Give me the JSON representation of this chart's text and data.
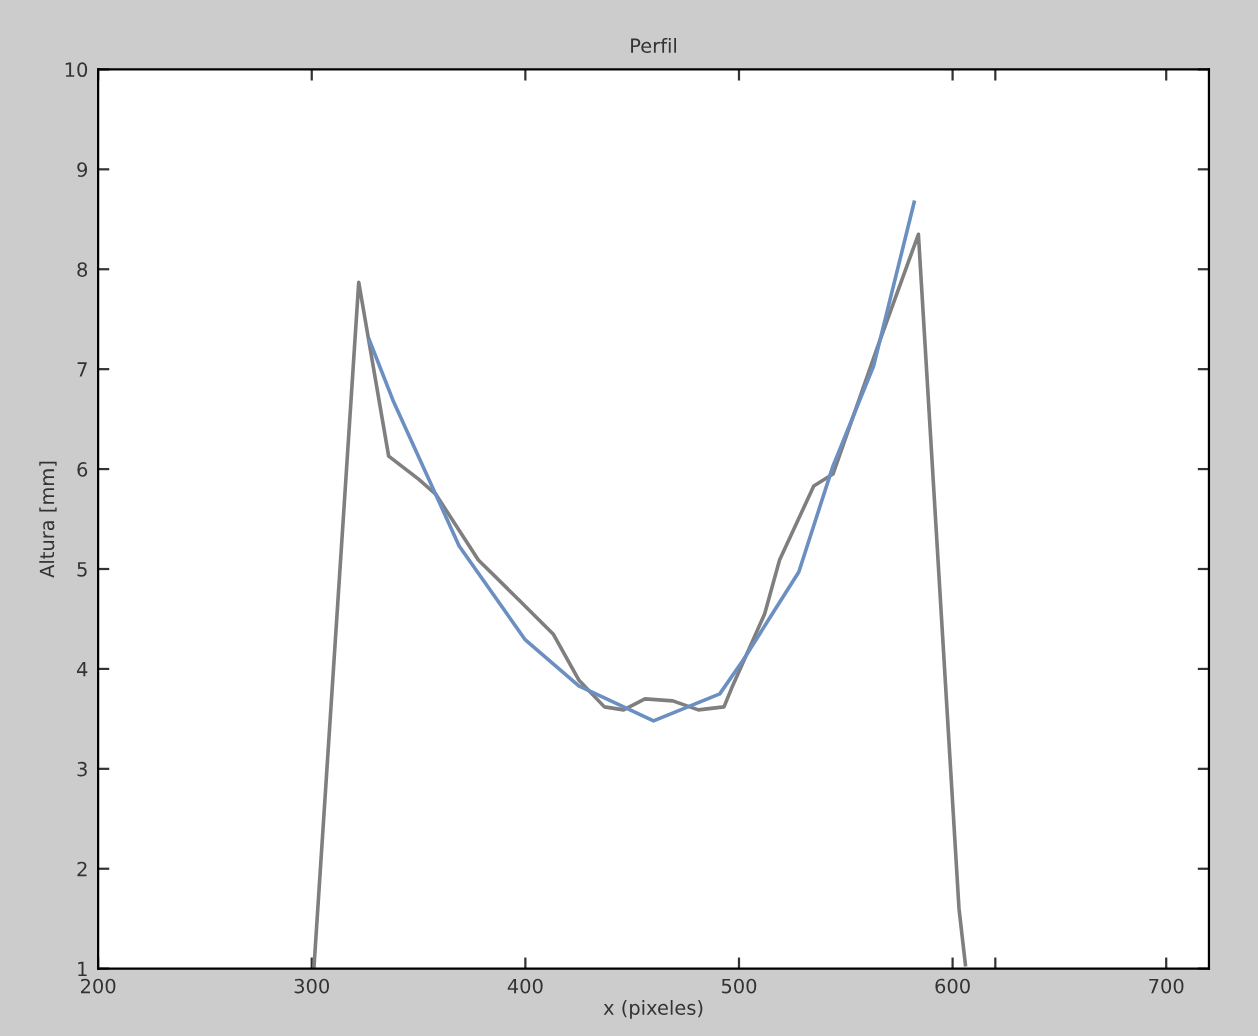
{
  "chart_data": {
    "type": "line",
    "title": "Perfil",
    "xlabel": "x (pixeles)",
    "ylabel": "Altura [mm]",
    "xlim": [
      200,
      720
    ],
    "ylim": [
      1,
      10
    ],
    "xticks": [
      200,
      300,
      400,
      500,
      600,
      {
        "value": 620,
        "label": null
      },
      700
    ],
    "yticks": [
      1,
      2,
      3,
      4,
      5,
      6,
      7,
      8,
      9,
      10
    ],
    "marker": "none",
    "line_style": "solid",
    "series": [
      {
        "color": "#7f7f7f",
        "x": [
          301,
          322,
          336,
          350,
          358,
          378,
          397,
          413,
          425,
          437,
          446,
          456,
          469,
          481,
          493,
          497,
          512,
          519,
          535,
          544,
          565,
          584,
          603,
          606
        ],
        "values": [
          1,
          7.87,
          6.13,
          5.9,
          5.75,
          5.09,
          4.69,
          4.35,
          3.89,
          3.62,
          3.59,
          3.7,
          3.68,
          3.59,
          3.62,
          3.83,
          4.55,
          5.09,
          5.83,
          5.95,
          7.23,
          8.35,
          1.6,
          1.04
        ]
      },
      {
        "color": "#6a8fc0",
        "x": [
          327,
          338,
          369,
          400,
          425,
          460,
          491,
          502,
          528,
          544,
          563,
          582
        ],
        "values": [
          7.29,
          6.69,
          5.23,
          4.29,
          3.83,
          3.48,
          3.75,
          4.09,
          4.97,
          6.03,
          7.03,
          8.67
        ]
      }
    ]
  }
}
